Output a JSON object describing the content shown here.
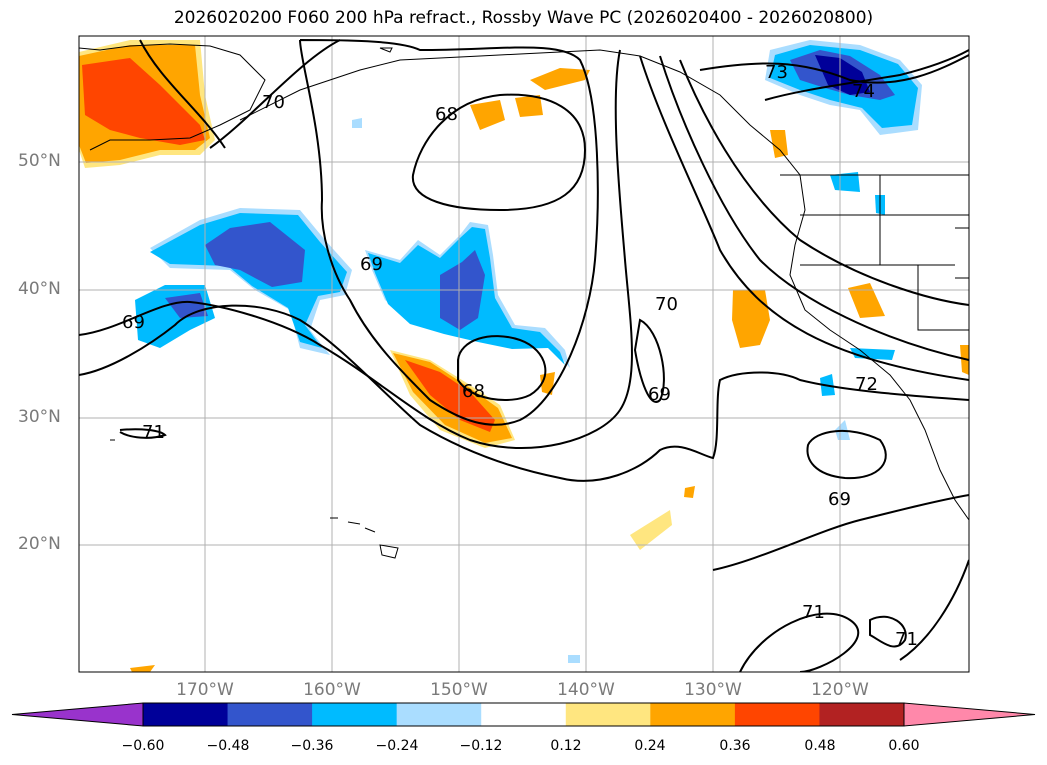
{
  "title": "2026020200 F060 200 hPa refract., Rossby Wave PC (2026020400 - 2026020800)",
  "lat_labels": [
    "50°N",
    "40°N",
    "30°N",
    "20°N"
  ],
  "lon_labels": [
    "170°W",
    "160°W",
    "150°W",
    "140°W",
    "130°W",
    "120°W"
  ],
  "contour_labels": [
    "70",
    "68",
    "69",
    "68",
    "70",
    "69",
    "69",
    "71",
    "71",
    "71",
    "73",
    "74",
    "72"
  ],
  "colorbar": {
    "ticks": [
      "−0.60",
      "−0.48",
      "−0.36",
      "−0.24",
      "−0.12",
      "0.12",
      "0.24",
      "0.36",
      "0.48",
      "0.60"
    ],
    "colors": [
      "#9933cc",
      "#000099",
      "#3355cc",
      "#00bbff",
      "#aaddff",
      "#ffffff",
      "#ffe680",
      "#ffa500",
      "#ff4500",
      "#b22222",
      "#ff88aa"
    ]
  }
}
